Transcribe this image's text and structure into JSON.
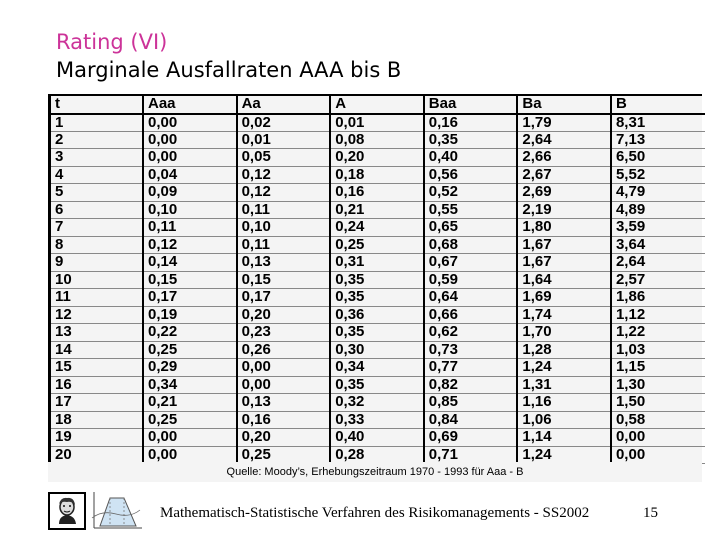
{
  "slide": {
    "title": "Rating (VI)",
    "subtitle": "Marginale Ausfallraten AAA bis B",
    "source_note": "Quelle: Moody’s, Erhebungszeitraum 1970 - 1993 für Aaa - B",
    "footer": "Mathematisch-Statistische Verfahren des Risikomanagements - SS2002",
    "page_number": "15",
    "accent_color": "#cc3399"
  },
  "table": {
    "headers": [
      "t",
      "Aaa",
      "Aa",
      "A",
      "Baa",
      "Ba",
      "B"
    ],
    "rows": [
      [
        "1",
        "0,00",
        "0,02",
        "0,01",
        "0,16",
        "1,79",
        "8,31"
      ],
      [
        "2",
        "0,00",
        "0,01",
        "0,08",
        "0,35",
        "2,64",
        "7,13"
      ],
      [
        "3",
        "0,00",
        "0,05",
        "0,20",
        "0,40",
        "2,66",
        "6,50"
      ],
      [
        "4",
        "0,04",
        "0,12",
        "0,18",
        "0,56",
        "2,67",
        "5,52"
      ],
      [
        "5",
        "0,09",
        "0,12",
        "0,16",
        "0,52",
        "2,69",
        "4,79"
      ],
      [
        "6",
        "0,10",
        "0,11",
        "0,21",
        "0,55",
        "2,19",
        "4,89"
      ],
      [
        "7",
        "0,11",
        "0,10",
        "0,24",
        "0,65",
        "1,80",
        "3,59"
      ],
      [
        "8",
        "0,12",
        "0,11",
        "0,25",
        "0,68",
        "1,67",
        "3,64"
      ],
      [
        "9",
        "0,14",
        "0,13",
        "0,31",
        "0,67",
        "1,67",
        "2,64"
      ],
      [
        "10",
        "0,15",
        "0,15",
        "0,35",
        "0,59",
        "1,64",
        "2,57"
      ],
      [
        "11",
        "0,17",
        "0,17",
        "0,35",
        "0,64",
        "1,69",
        "1,86"
      ],
      [
        "12",
        "0,19",
        "0,20",
        "0,36",
        "0,66",
        "1,74",
        "1,12"
      ],
      [
        "13",
        "0,22",
        "0,23",
        "0,35",
        "0,62",
        "1,70",
        "1,22"
      ],
      [
        "14",
        "0,25",
        "0,26",
        "0,30",
        "0,73",
        "1,28",
        "1,03"
      ],
      [
        "15",
        "0,29",
        "0,00",
        "0,34",
        "0,77",
        "1,24",
        "1,15"
      ],
      [
        "16",
        "0,34",
        "0,00",
        "0,35",
        "0,82",
        "1,31",
        "1,30"
      ],
      [
        "17",
        "0,21",
        "0,13",
        "0,32",
        "0,85",
        "1,16",
        "1,50"
      ],
      [
        "18",
        "0,25",
        "0,16",
        "0,33",
        "0,84",
        "1,06",
        "0,58"
      ],
      [
        "19",
        "0,00",
        "0,20",
        "0,40",
        "0,69",
        "1,14",
        "0,00"
      ],
      [
        "20",
        "0,00",
        "0,25",
        "0,28",
        "0,71",
        "1,24",
        "0,00"
      ]
    ]
  },
  "icons": {
    "portrait": "portrait-icon",
    "chart": "density-chart-icon"
  }
}
